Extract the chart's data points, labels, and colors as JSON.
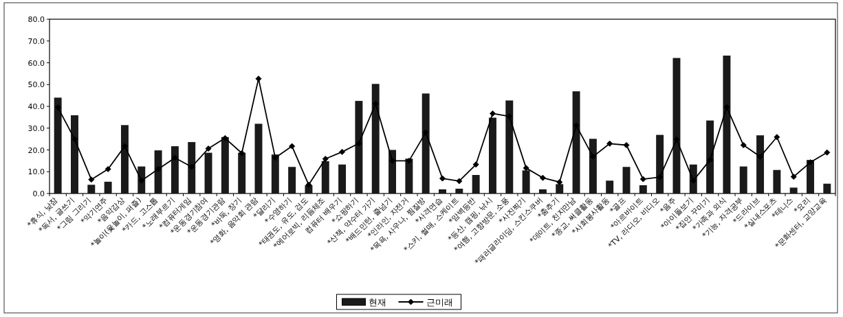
{
  "chart_data": {
    "type": "bar",
    "categories": [
      "*휴식, 낮잠",
      "*독서, 글쓰기",
      "*그림 그리기",
      "*악기연주",
      "*음악감상",
      "*놀이(윷놀이, 퍼즐)",
      "*카드, 고스톱",
      "*노래부르기",
      "*컴퓨터게임",
      "*운동경기참여",
      "*운동경기관람",
      "*바둑, 장기",
      "*영화, 음악회 관람",
      "*달리기",
      "*수영하기",
      "*태권도, 유도, 검도",
      "*에어로빅, 리듬체조",
      "컴퓨터 배우기",
      "*쇼핑하기",
      "*산책, 약수터 가기",
      "*배드민턴, 줄넘기",
      "*인라인, 자전거",
      "*목욕, 사우나, 찜질방",
      "*사격연습",
      "*스키, 썰매, 스케이트",
      "*암벽등반",
      "*등산, 캠핑, 낚시",
      "*여행, 고향방문, 소풍",
      "*사진찍기",
      "*패러글라이딩, 스킨스쿠버",
      "*춤추기",
      "*데이트, 친지만남",
      "*종교, 써클활동",
      "*사회봉사활동",
      "*골프",
      "*아르바이트",
      "*TV, 라디오, 비디오",
      "*음주",
      "*아이돌보기",
      "*집안 꾸미기",
      "*가족과 외식",
      "*기능, 자격공부",
      "*드라이브",
      "*실내스포츠",
      "*테니스",
      "*요리",
      "*문화센터, 교양교육"
    ],
    "series": [
      {
        "name": "현재",
        "color": "#1a1a1a",
        "values": [
          44.0,
          35.9,
          4.0,
          5.4,
          31.4,
          12.4,
          19.8,
          21.7,
          23.6,
          18.7,
          25.9,
          18.7,
          32.0,
          17.9,
          12.2,
          3.8,
          14.8,
          13.3,
          42.5,
          50.3,
          20.0,
          16.0,
          45.9,
          1.9,
          2.2,
          8.5,
          34.8,
          42.7,
          10.6,
          1.9,
          4.3,
          46.9,
          25.1,
          5.9,
          12.2,
          3.8,
          26.9,
          62.2,
          13.3,
          33.5,
          63.3,
          12.4,
          26.7,
          10.8,
          2.7,
          15.4,
          4.5
        ]
      },
      {
        "name": "근미래",
        "type": "line",
        "color": "#000000",
        "marker": "diamond",
        "values": [
          39.5,
          25.0,
          6.4,
          11.2,
          21.7,
          5.9,
          11.2,
          16.4,
          12.2,
          20.6,
          25.4,
          18.5,
          52.7,
          16.4,
          21.7,
          4.0,
          15.9,
          19.1,
          23.0,
          41.2,
          15.0,
          15.0,
          28.0,
          6.9,
          5.7,
          13.3,
          36.7,
          35.4,
          11.7,
          7.2,
          5.2,
          31.2,
          16.9,
          22.9,
          22.2,
          6.6,
          7.5,
          24.8,
          5.9,
          15.4,
          39.6,
          22.2,
          16.9,
          25.9,
          7.7,
          14.3,
          18.8
        ]
      }
    ],
    "ylim": [
      0,
      80
    ],
    "yticks": [
      {
        "value": 0,
        "label": "0.0"
      },
      {
        "value": 10,
        "label": "10.0"
      },
      {
        "value": 20,
        "label": "20.0"
      },
      {
        "value": 30,
        "label": "30.0"
      },
      {
        "value": 40,
        "label": "40.0"
      },
      {
        "value": 50,
        "label": "50.0"
      },
      {
        "value": 60,
        "label": "60.0"
      },
      {
        "value": 70,
        "label": "70.0"
      },
      {
        "value": 80,
        "label": "80.0"
      }
    ],
    "grid": false,
    "legend": "bottom"
  }
}
